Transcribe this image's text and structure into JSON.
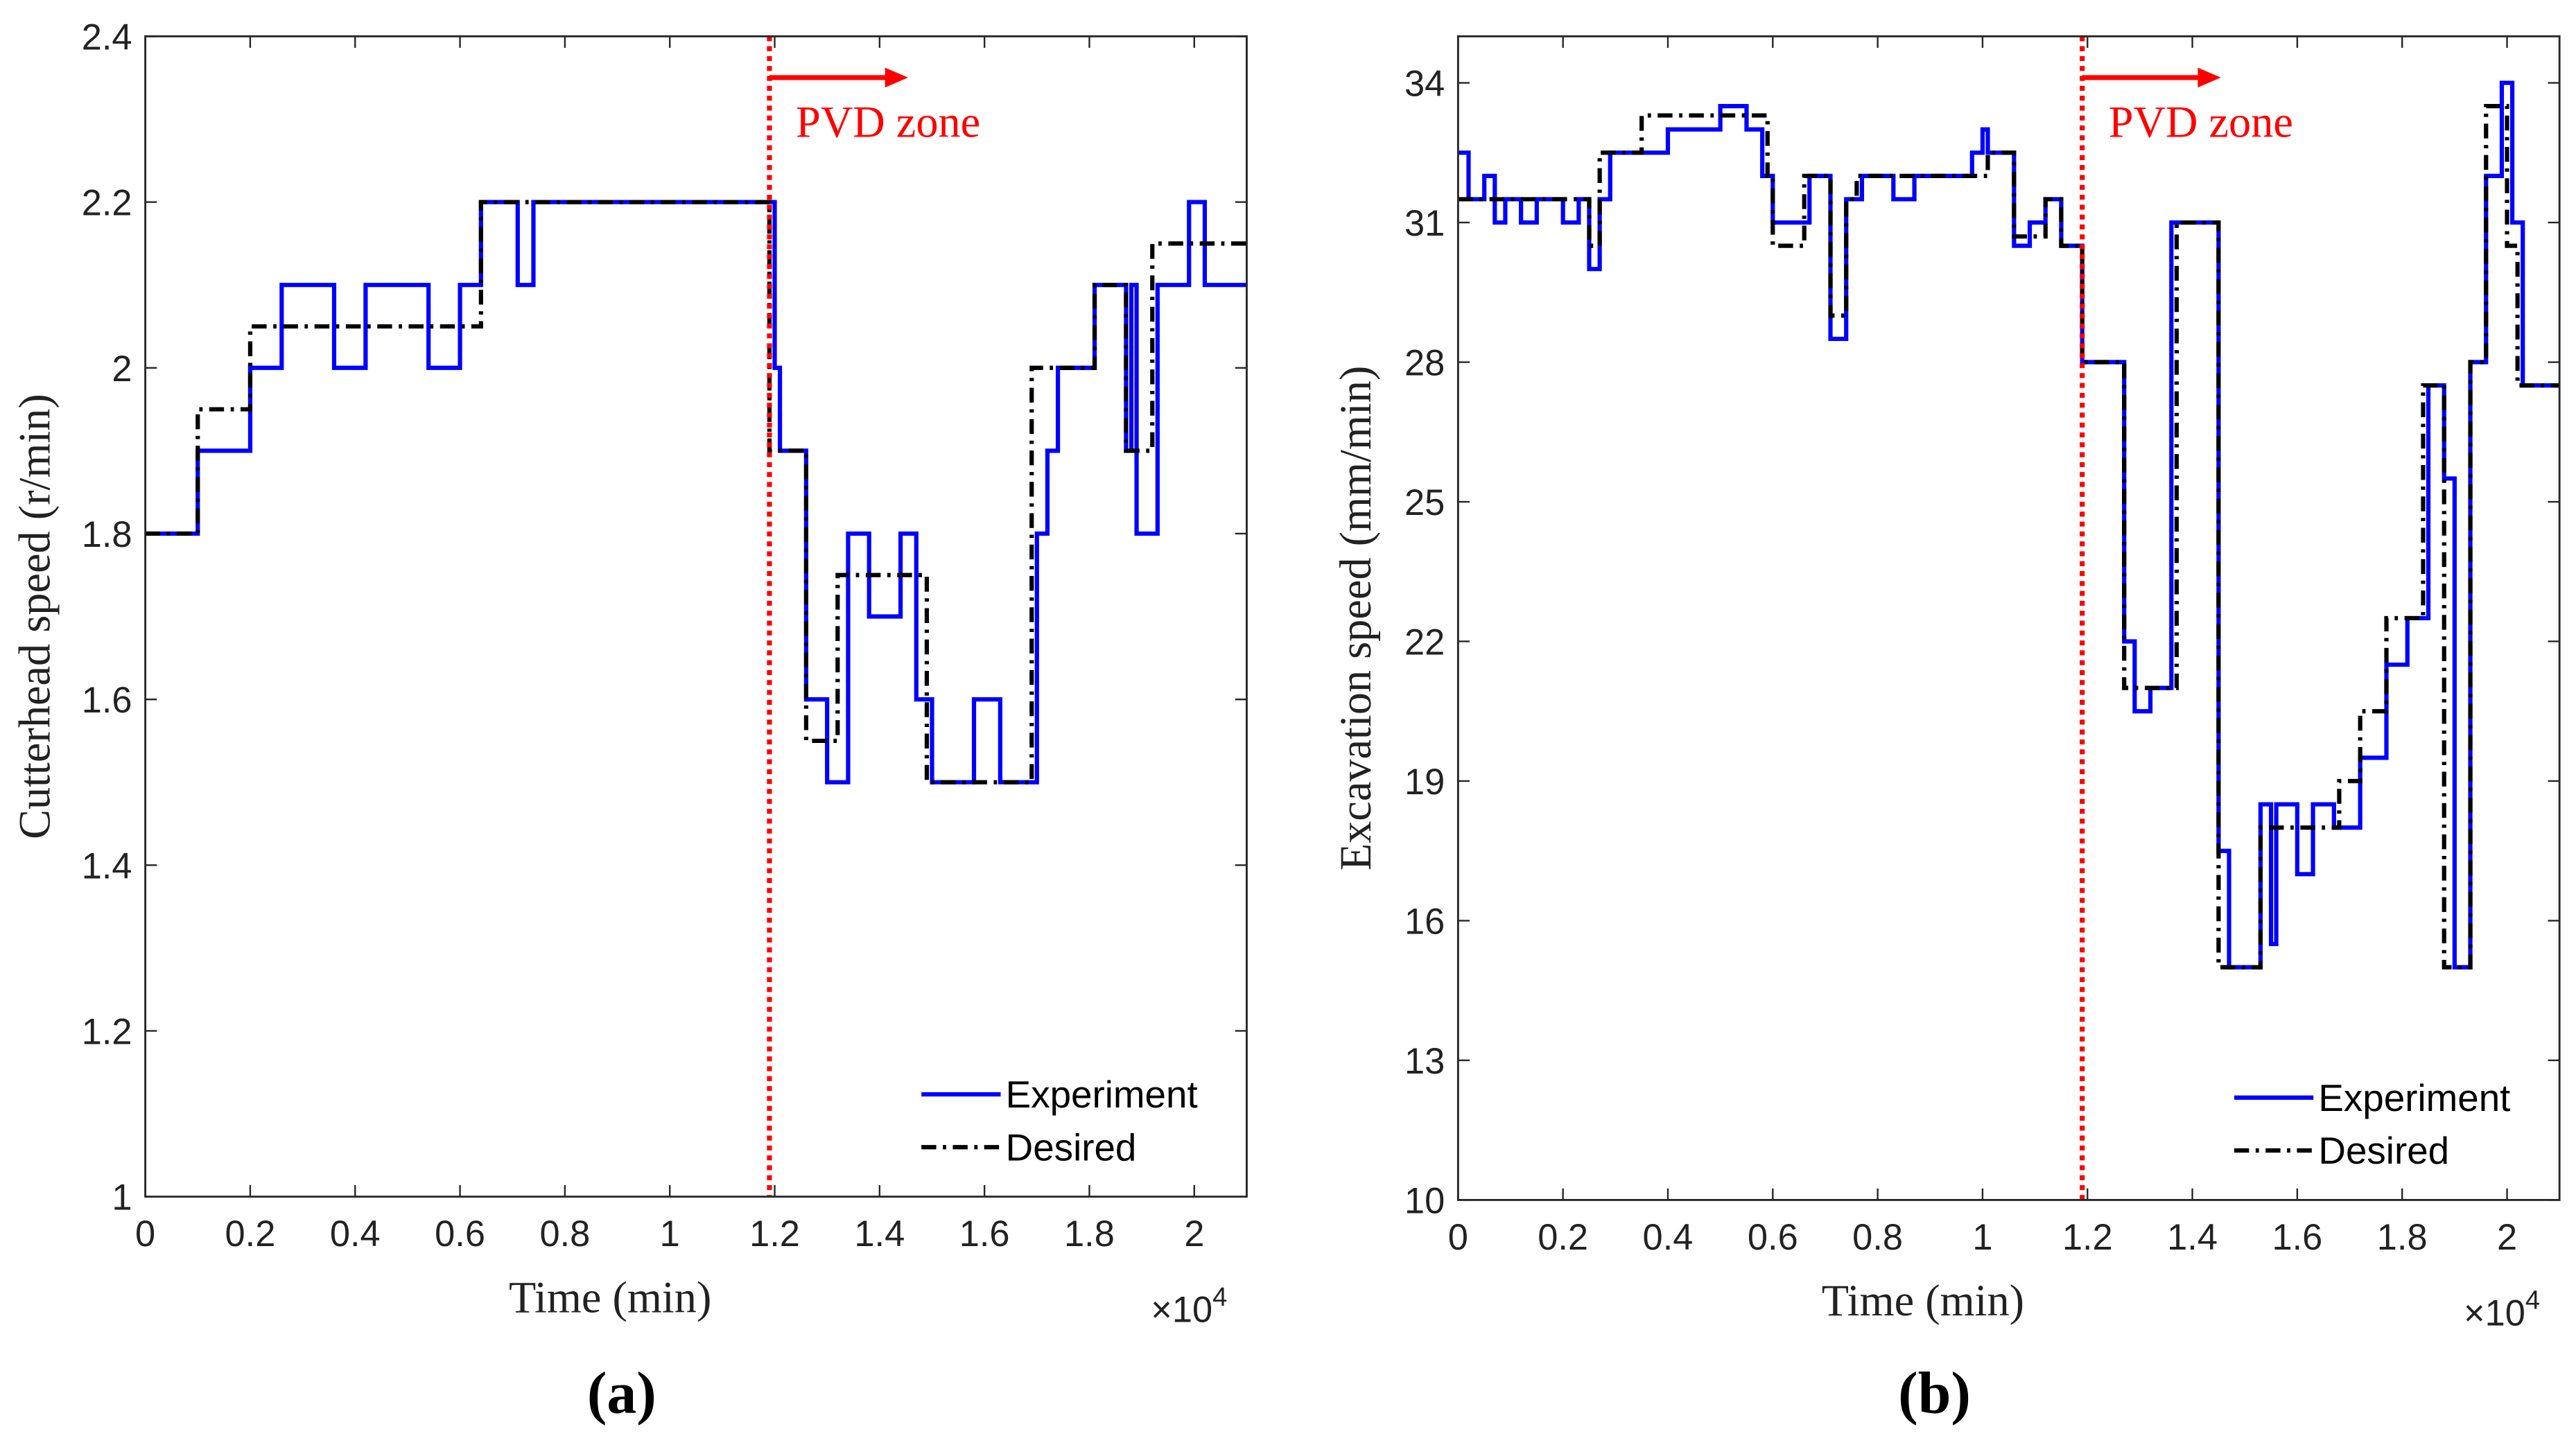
{
  "chart_data": [
    {
      "type": "line",
      "panel_label": "(a)",
      "xlabel": "Time (min)",
      "ylabel": "Cutterhead speed (r/min)",
      "x_multiplier": {
        "base": "×10",
        "exponent": "4"
      },
      "xlim": [
        0,
        2.1
      ],
      "xticks": [
        0,
        0.2,
        0.4,
        0.6,
        0.8,
        1,
        1.2,
        1.4,
        1.6,
        1.8,
        2
      ],
      "ylim": [
        1,
        2.4
      ],
      "yticks": [
        1,
        1.2,
        1.4,
        1.6,
        1.8,
        2,
        2.2,
        2.4
      ],
      "annotation": {
        "text": "PVD zone",
        "x": 1.19,
        "color": "#ff0000"
      },
      "legend": "lower right",
      "series": [
        {
          "name": "Experiment",
          "color": "#0000ff",
          "dash": "solid",
          "x": [
            0,
            0.1,
            0.1,
            0.2,
            0.2,
            0.26,
            0.26,
            0.36,
            0.36,
            0.42,
            0.42,
            0.54,
            0.54,
            0.6,
            0.6,
            0.64,
            0.64,
            0.71,
            0.71,
            0.74,
            0.74,
            1.2,
            1.2,
            1.21,
            1.21,
            1.26,
            1.26,
            1.3,
            1.3,
            1.34,
            1.34,
            1.38,
            1.38,
            1.44,
            1.44,
            1.47,
            1.47,
            1.5,
            1.5,
            1.58,
            1.58,
            1.63,
            1.63,
            1.7,
            1.7,
            1.72,
            1.72,
            1.74,
            1.74,
            1.81,
            1.81,
            1.87,
            1.87,
            1.88,
            1.88,
            1.89,
            1.89,
            1.93,
            1.93,
            1.99,
            1.99,
            2.02,
            2.02,
            2.1
          ],
          "values": [
            1.8,
            1.8,
            1.9,
            1.9,
            2,
            2,
            2.1,
            2.1,
            2,
            2,
            2.1,
            2.1,
            2,
            2,
            2.1,
            2.1,
            2.2,
            2.2,
            2.1,
            2.1,
            2.2,
            2.2,
            2,
            2,
            1.9,
            1.9,
            1.6,
            1.6,
            1.5,
            1.5,
            1.8,
            1.8,
            1.7,
            1.7,
            1.8,
            1.8,
            1.6,
            1.6,
            1.5,
            1.5,
            1.6,
            1.6,
            1.5,
            1.5,
            1.8,
            1.8,
            1.9,
            1.9,
            2,
            2,
            2.1,
            2.1,
            1.9,
            1.9,
            2.1,
            2.1,
            1.8,
            1.8,
            2.1,
            2.1,
            2.2,
            2.2,
            2.1,
            2.1
          ]
        },
        {
          "name": "Desired",
          "color": "#000000",
          "dash": "dashdot",
          "x": [
            0,
            0.1,
            0.1,
            0.2,
            0.2,
            0.64,
            0.64,
            1.19,
            1.19,
            1.26,
            1.26,
            1.32,
            1.32,
            1.49,
            1.49,
            1.69,
            1.69,
            1.81,
            1.81,
            1.87,
            1.87,
            1.92,
            1.92,
            2.1
          ],
          "values": [
            1.8,
            1.8,
            1.95,
            1.95,
            2.05,
            2.05,
            2.2,
            2.2,
            1.9,
            1.9,
            1.55,
            1.55,
            1.75,
            1.75,
            1.5,
            1.5,
            2,
            2,
            2.1,
            2.1,
            1.9,
            1.9,
            2.15,
            2.15
          ]
        }
      ]
    },
    {
      "type": "line",
      "panel_label": "(b)",
      "xlabel": "Time (min)",
      "ylabel": "Excavation speed (mm/min)",
      "x_multiplier": {
        "base": "×10",
        "exponent": "4"
      },
      "xlim": [
        0,
        2.1
      ],
      "xticks": [
        0,
        0.2,
        0.4,
        0.6,
        0.8,
        1,
        1.2,
        1.4,
        1.6,
        1.8,
        2
      ],
      "ylim": [
        10,
        35
      ],
      "yticks": [
        10,
        13,
        16,
        19,
        22,
        25,
        28,
        31,
        34
      ],
      "annotation": {
        "text": "PVD zone",
        "x": 1.19,
        "color": "#ff0000"
      },
      "legend": "lower right",
      "series": [
        {
          "name": "Experiment",
          "color": "#0000ff",
          "dash": "solid",
          "x": [
            0,
            0.02,
            0.02,
            0.05,
            0.05,
            0.07,
            0.07,
            0.09,
            0.09,
            0.12,
            0.12,
            0.15,
            0.15,
            0.2,
            0.2,
            0.23,
            0.23,
            0.25,
            0.25,
            0.27,
            0.27,
            0.29,
            0.29,
            0.4,
            0.4,
            0.5,
            0.5,
            0.55,
            0.55,
            0.58,
            0.58,
            0.6,
            0.6,
            0.67,
            0.67,
            0.71,
            0.71,
            0.74,
            0.74,
            0.77,
            0.77,
            0.83,
            0.83,
            0.87,
            0.87,
            0.98,
            0.98,
            1,
            1,
            1.01,
            1.01,
            1.06,
            1.06,
            1.09,
            1.09,
            1.12,
            1.12,
            1.15,
            1.15,
            1.19,
            1.19,
            1.27,
            1.27,
            1.29,
            1.29,
            1.32,
            1.32,
            1.36,
            1.36,
            1.45,
            1.45,
            1.47,
            1.47,
            1.53,
            1.53,
            1.55,
            1.55,
            1.56,
            1.56,
            1.6,
            1.6,
            1.63,
            1.63,
            1.67,
            1.67,
            1.72,
            1.72,
            1.77,
            1.77,
            1.81,
            1.81,
            1.85,
            1.85,
            1.88,
            1.88,
            1.9,
            1.9,
            1.93,
            1.93,
            1.96,
            1.96,
            1.99,
            1.99,
            2.01,
            2.01,
            2.03,
            2.03,
            2.1
          ],
          "values": [
            32.5,
            32.5,
            31.5,
            31.5,
            32,
            32,
            31,
            31,
            31.5,
            31.5,
            31,
            31,
            31.5,
            31.5,
            31,
            31,
            31.5,
            31.5,
            30,
            30,
            31.5,
            31.5,
            32.5,
            32.5,
            33,
            33,
            33.5,
            33.5,
            33,
            33,
            32,
            32,
            31,
            31,
            32,
            32,
            28.5,
            28.5,
            31.5,
            31.5,
            32,
            32,
            31.5,
            31.5,
            32,
            32,
            32.5,
            32.5,
            33,
            33,
            32.5,
            32.5,
            30.5,
            30.5,
            31,
            31,
            31.5,
            31.5,
            30.5,
            30.5,
            28,
            28,
            22,
            22,
            20.5,
            20.5,
            21,
            21,
            31,
            31,
            17.5,
            17.5,
            15,
            15,
            18.5,
            18.5,
            15.5,
            15.5,
            18.5,
            18.5,
            17,
            17,
            18.5,
            18.5,
            18,
            18,
            19.5,
            19.5,
            21.5,
            21.5,
            22.5,
            22.5,
            27.5,
            27.5,
            25.5,
            25.5,
            15,
            15,
            28,
            28,
            32,
            32,
            34,
            34,
            31,
            31,
            27.5,
            27.5
          ]
        },
        {
          "name": "Desired",
          "color": "#000000",
          "dash": "dashdot",
          "x": [
            0,
            0.25,
            0.25,
            0.27,
            0.27,
            0.35,
            0.35,
            0.59,
            0.59,
            0.6,
            0.6,
            0.66,
            0.66,
            0.71,
            0.71,
            0.74,
            0.74,
            0.76,
            0.76,
            1.01,
            1.01,
            1.06,
            1.06,
            1.12,
            1.12,
            1.15,
            1.15,
            1.19,
            1.19,
            1.27,
            1.27,
            1.37,
            1.37,
            1.45,
            1.45,
            1.53,
            1.53,
            1.68,
            1.68,
            1.72,
            1.72,
            1.77,
            1.77,
            1.84,
            1.84,
            1.88,
            1.88,
            1.93,
            1.93,
            1.96,
            1.96,
            2,
            2,
            2.02,
            2.02,
            2.1
          ],
          "values": [
            31.5,
            31.5,
            30.5,
            30.5,
            32.5,
            32.5,
            33.3,
            33.3,
            32,
            32,
            30.5,
            30.5,
            32,
            32,
            29,
            29,
            31.5,
            31.5,
            32,
            32,
            32.5,
            32.5,
            30.7,
            30.7,
            31.5,
            31.5,
            30.5,
            30.5,
            28,
            28,
            21,
            21,
            31,
            31,
            15,
            15,
            18,
            18,
            19,
            19,
            20.5,
            20.5,
            22.5,
            22.5,
            27.5,
            27.5,
            15,
            15,
            28,
            28,
            33.5,
            33.5,
            30.5,
            30.5,
            27.5,
            27.5
          ]
        }
      ]
    }
  ]
}
